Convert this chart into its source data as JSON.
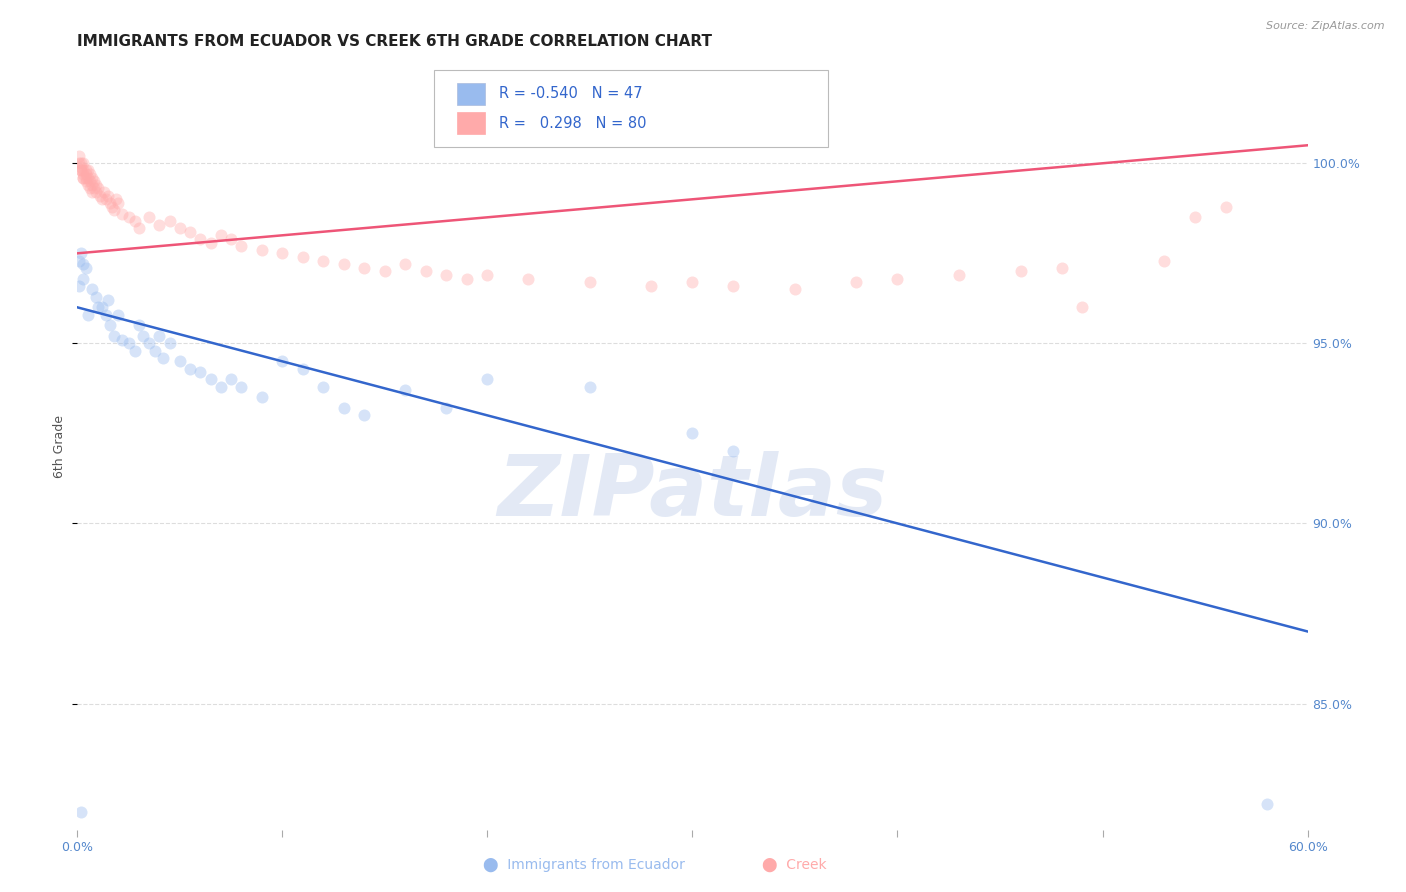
{
  "title": "IMMIGRANTS FROM ECUADOR VS CREEK 6TH GRADE CORRELATION CHART",
  "source": "Source: ZipAtlas.com",
  "ylabel": "6th Grade",
  "xlim": [
    0.0,
    0.6
  ],
  "ylim": [
    0.815,
    1.028
  ],
  "yticks_right": [
    0.85,
    0.9,
    0.95,
    1.0
  ],
  "ytick_labels_right": [
    "85.0%",
    "90.0%",
    "95.0%",
    "100.0%"
  ],
  "blue_color": "#99BBEE",
  "pink_color": "#FFAAAA",
  "blue_line_color": "#3366CC",
  "pink_line_color": "#EE5577",
  "blue_R": -0.54,
  "blue_N": 47,
  "pink_R": 0.298,
  "pink_N": 80,
  "blue_line": [
    [
      0.0,
      0.96
    ],
    [
      0.6,
      0.87
    ]
  ],
  "pink_line": [
    [
      0.0,
      0.975
    ],
    [
      0.6,
      1.005
    ]
  ],
  "blue_scatter": [
    [
      0.002,
      0.975
    ],
    [
      0.003,
      0.968
    ],
    [
      0.003,
      0.972
    ],
    [
      0.001,
      0.973
    ],
    [
      0.005,
      0.958
    ],
    [
      0.004,
      0.971
    ],
    [
      0.007,
      0.965
    ],
    [
      0.001,
      0.966
    ],
    [
      0.009,
      0.963
    ],
    [
      0.01,
      0.96
    ],
    [
      0.012,
      0.96
    ],
    [
      0.014,
      0.958
    ],
    [
      0.015,
      0.962
    ],
    [
      0.016,
      0.955
    ],
    [
      0.018,
      0.952
    ],
    [
      0.02,
      0.958
    ],
    [
      0.022,
      0.951
    ],
    [
      0.025,
      0.95
    ],
    [
      0.028,
      0.948
    ],
    [
      0.03,
      0.955
    ],
    [
      0.032,
      0.952
    ],
    [
      0.035,
      0.95
    ],
    [
      0.038,
      0.948
    ],
    [
      0.04,
      0.952
    ],
    [
      0.042,
      0.946
    ],
    [
      0.045,
      0.95
    ],
    [
      0.05,
      0.945
    ],
    [
      0.055,
      0.943
    ],
    [
      0.06,
      0.942
    ],
    [
      0.065,
      0.94
    ],
    [
      0.07,
      0.938
    ],
    [
      0.075,
      0.94
    ],
    [
      0.08,
      0.938
    ],
    [
      0.09,
      0.935
    ],
    [
      0.1,
      0.945
    ],
    [
      0.11,
      0.943
    ],
    [
      0.12,
      0.938
    ],
    [
      0.13,
      0.932
    ],
    [
      0.14,
      0.93
    ],
    [
      0.16,
      0.937
    ],
    [
      0.18,
      0.932
    ],
    [
      0.2,
      0.94
    ],
    [
      0.25,
      0.938
    ],
    [
      0.3,
      0.925
    ],
    [
      0.32,
      0.92
    ],
    [
      0.58,
      0.822
    ],
    [
      0.002,
      0.82
    ]
  ],
  "pink_scatter": [
    [
      0.001,
      1.002
    ],
    [
      0.001,
      1.0
    ],
    [
      0.002,
      1.0
    ],
    [
      0.002,
      0.999
    ],
    [
      0.002,
      0.998
    ],
    [
      0.002,
      0.998
    ],
    [
      0.003,
      1.0
    ],
    [
      0.003,
      0.998
    ],
    [
      0.003,
      0.997
    ],
    [
      0.003,
      0.996
    ],
    [
      0.003,
      0.996
    ],
    [
      0.004,
      0.998
    ],
    [
      0.004,
      0.997
    ],
    [
      0.004,
      0.996
    ],
    [
      0.004,
      0.995
    ],
    [
      0.005,
      0.998
    ],
    [
      0.005,
      0.996
    ],
    [
      0.005,
      0.994
    ],
    [
      0.006,
      0.997
    ],
    [
      0.006,
      0.995
    ],
    [
      0.006,
      0.993
    ],
    [
      0.007,
      0.996
    ],
    [
      0.007,
      0.994
    ],
    [
      0.007,
      0.992
    ],
    [
      0.008,
      0.995
    ],
    [
      0.008,
      0.993
    ],
    [
      0.009,
      0.994
    ],
    [
      0.009,
      0.992
    ],
    [
      0.01,
      0.993
    ],
    [
      0.011,
      0.991
    ],
    [
      0.012,
      0.99
    ],
    [
      0.013,
      0.992
    ],
    [
      0.014,
      0.99
    ],
    [
      0.015,
      0.991
    ],
    [
      0.016,
      0.989
    ],
    [
      0.017,
      0.988
    ],
    [
      0.018,
      0.987
    ],
    [
      0.019,
      0.99
    ],
    [
      0.02,
      0.989
    ],
    [
      0.022,
      0.986
    ],
    [
      0.025,
      0.985
    ],
    [
      0.028,
      0.984
    ],
    [
      0.03,
      0.982
    ],
    [
      0.035,
      0.985
    ],
    [
      0.04,
      0.983
    ],
    [
      0.045,
      0.984
    ],
    [
      0.05,
      0.982
    ],
    [
      0.055,
      0.981
    ],
    [
      0.06,
      0.979
    ],
    [
      0.065,
      0.978
    ],
    [
      0.07,
      0.98
    ],
    [
      0.075,
      0.979
    ],
    [
      0.08,
      0.977
    ],
    [
      0.09,
      0.976
    ],
    [
      0.1,
      0.975
    ],
    [
      0.11,
      0.974
    ],
    [
      0.12,
      0.973
    ],
    [
      0.13,
      0.972
    ],
    [
      0.14,
      0.971
    ],
    [
      0.15,
      0.97
    ],
    [
      0.16,
      0.972
    ],
    [
      0.17,
      0.97
    ],
    [
      0.18,
      0.969
    ],
    [
      0.19,
      0.968
    ],
    [
      0.2,
      0.969
    ],
    [
      0.22,
      0.968
    ],
    [
      0.25,
      0.967
    ],
    [
      0.28,
      0.966
    ],
    [
      0.3,
      0.967
    ],
    [
      0.32,
      0.966
    ],
    [
      0.35,
      0.965
    ],
    [
      0.38,
      0.967
    ],
    [
      0.4,
      0.968
    ],
    [
      0.43,
      0.969
    ],
    [
      0.46,
      0.97
    ],
    [
      0.48,
      0.971
    ],
    [
      0.49,
      0.96
    ],
    [
      0.53,
      0.973
    ],
    [
      0.545,
      0.985
    ],
    [
      0.56,
      0.988
    ]
  ],
  "background_color": "#ffffff",
  "grid_color": "#dddddd",
  "title_fontsize": 11,
  "axis_fontsize": 9,
  "tick_fontsize": 9,
  "scatter_size": 75,
  "scatter_alpha": 0.4,
  "line_width": 1.8,
  "watermark": "ZIPatlas",
  "watermark_color": "#ccd8ee",
  "text_blue": "#3366CC",
  "tick_label_color": "#5588CC"
}
